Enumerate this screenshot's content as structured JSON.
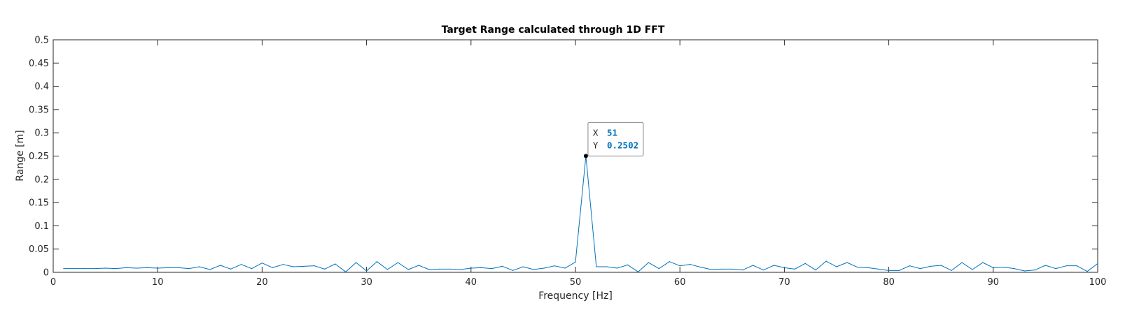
{
  "chart_data": {
    "type": "line",
    "title": "Target Range calculated through 1D FFT",
    "xlabel": "Frequency [Hz]",
    "ylabel": "Range [m]",
    "xlim": [
      0,
      100
    ],
    "ylim": [
      0,
      0.5
    ],
    "x_ticks": [
      "0",
      "10",
      "20",
      "30",
      "40",
      "50",
      "60",
      "70",
      "80",
      "90",
      "100"
    ],
    "y_ticks": [
      "0",
      "0.05",
      "0.1",
      "0.15",
      "0.2",
      "0.25",
      "0.3",
      "0.35",
      "0.4",
      "0.45",
      "0.5"
    ],
    "grid": false,
    "line_color": "#0072BD",
    "series": [
      {
        "x": [
          1,
          2,
          3,
          4,
          5,
          6,
          7,
          8,
          9,
          10,
          11,
          12,
          13,
          14,
          15,
          16,
          17,
          18,
          19,
          20,
          21,
          22,
          23,
          24,
          25,
          26,
          27,
          28,
          29,
          30,
          31,
          32,
          33,
          34,
          35,
          36,
          37,
          38,
          39,
          40,
          41,
          42,
          43,
          44,
          45,
          46,
          47,
          48,
          49,
          50,
          51,
          52,
          53,
          54,
          55,
          56,
          57,
          58,
          59,
          60,
          61,
          62,
          63,
          64,
          65,
          66,
          67,
          68,
          69,
          70,
          71,
          72,
          73,
          74,
          75,
          76,
          77,
          78,
          79,
          80,
          81,
          82,
          83,
          84,
          85,
          86,
          87,
          88,
          89,
          90,
          91,
          92,
          93,
          94,
          95,
          96,
          97,
          98,
          99,
          100
        ],
        "values": [
          0.008,
          0.008,
          0.008,
          0.008,
          0.009,
          0.008,
          0.01,
          0.009,
          0.01,
          0.009,
          0.01,
          0.01,
          0.008,
          0.012,
          0.006,
          0.015,
          0.007,
          0.017,
          0.008,
          0.02,
          0.01,
          0.017,
          0.012,
          0.013,
          0.014,
          0.007,
          0.018,
          0.001,
          0.021,
          0.003,
          0.023,
          0.006,
          0.021,
          0.006,
          0.015,
          0.006,
          0.007,
          0.007,
          0.006,
          0.009,
          0.01,
          0.008,
          0.013,
          0.004,
          0.012,
          0.006,
          0.009,
          0.014,
          0.009,
          0.022,
          0.2502,
          0.012,
          0.012,
          0.009,
          0.016,
          0.001,
          0.021,
          0.008,
          0.023,
          0.014,
          0.017,
          0.011,
          0.006,
          0.007,
          0.007,
          0.005,
          0.015,
          0.005,
          0.015,
          0.01,
          0.007,
          0.019,
          0.005,
          0.024,
          0.012,
          0.021,
          0.011,
          0.01,
          0.007,
          0.004,
          0.004,
          0.014,
          0.008,
          0.013,
          0.015,
          0.004,
          0.021,
          0.006,
          0.021,
          0.01,
          0.011,
          0.008,
          0.003,
          0.005,
          0.015,
          0.008,
          0.014,
          0.014,
          0.002,
          0.019
        ]
      }
    ]
  },
  "datatip": {
    "x_label": "X",
    "x_value": "51",
    "y_label": "Y",
    "y_value": "0.2502",
    "value_color": "#0072BD"
  }
}
